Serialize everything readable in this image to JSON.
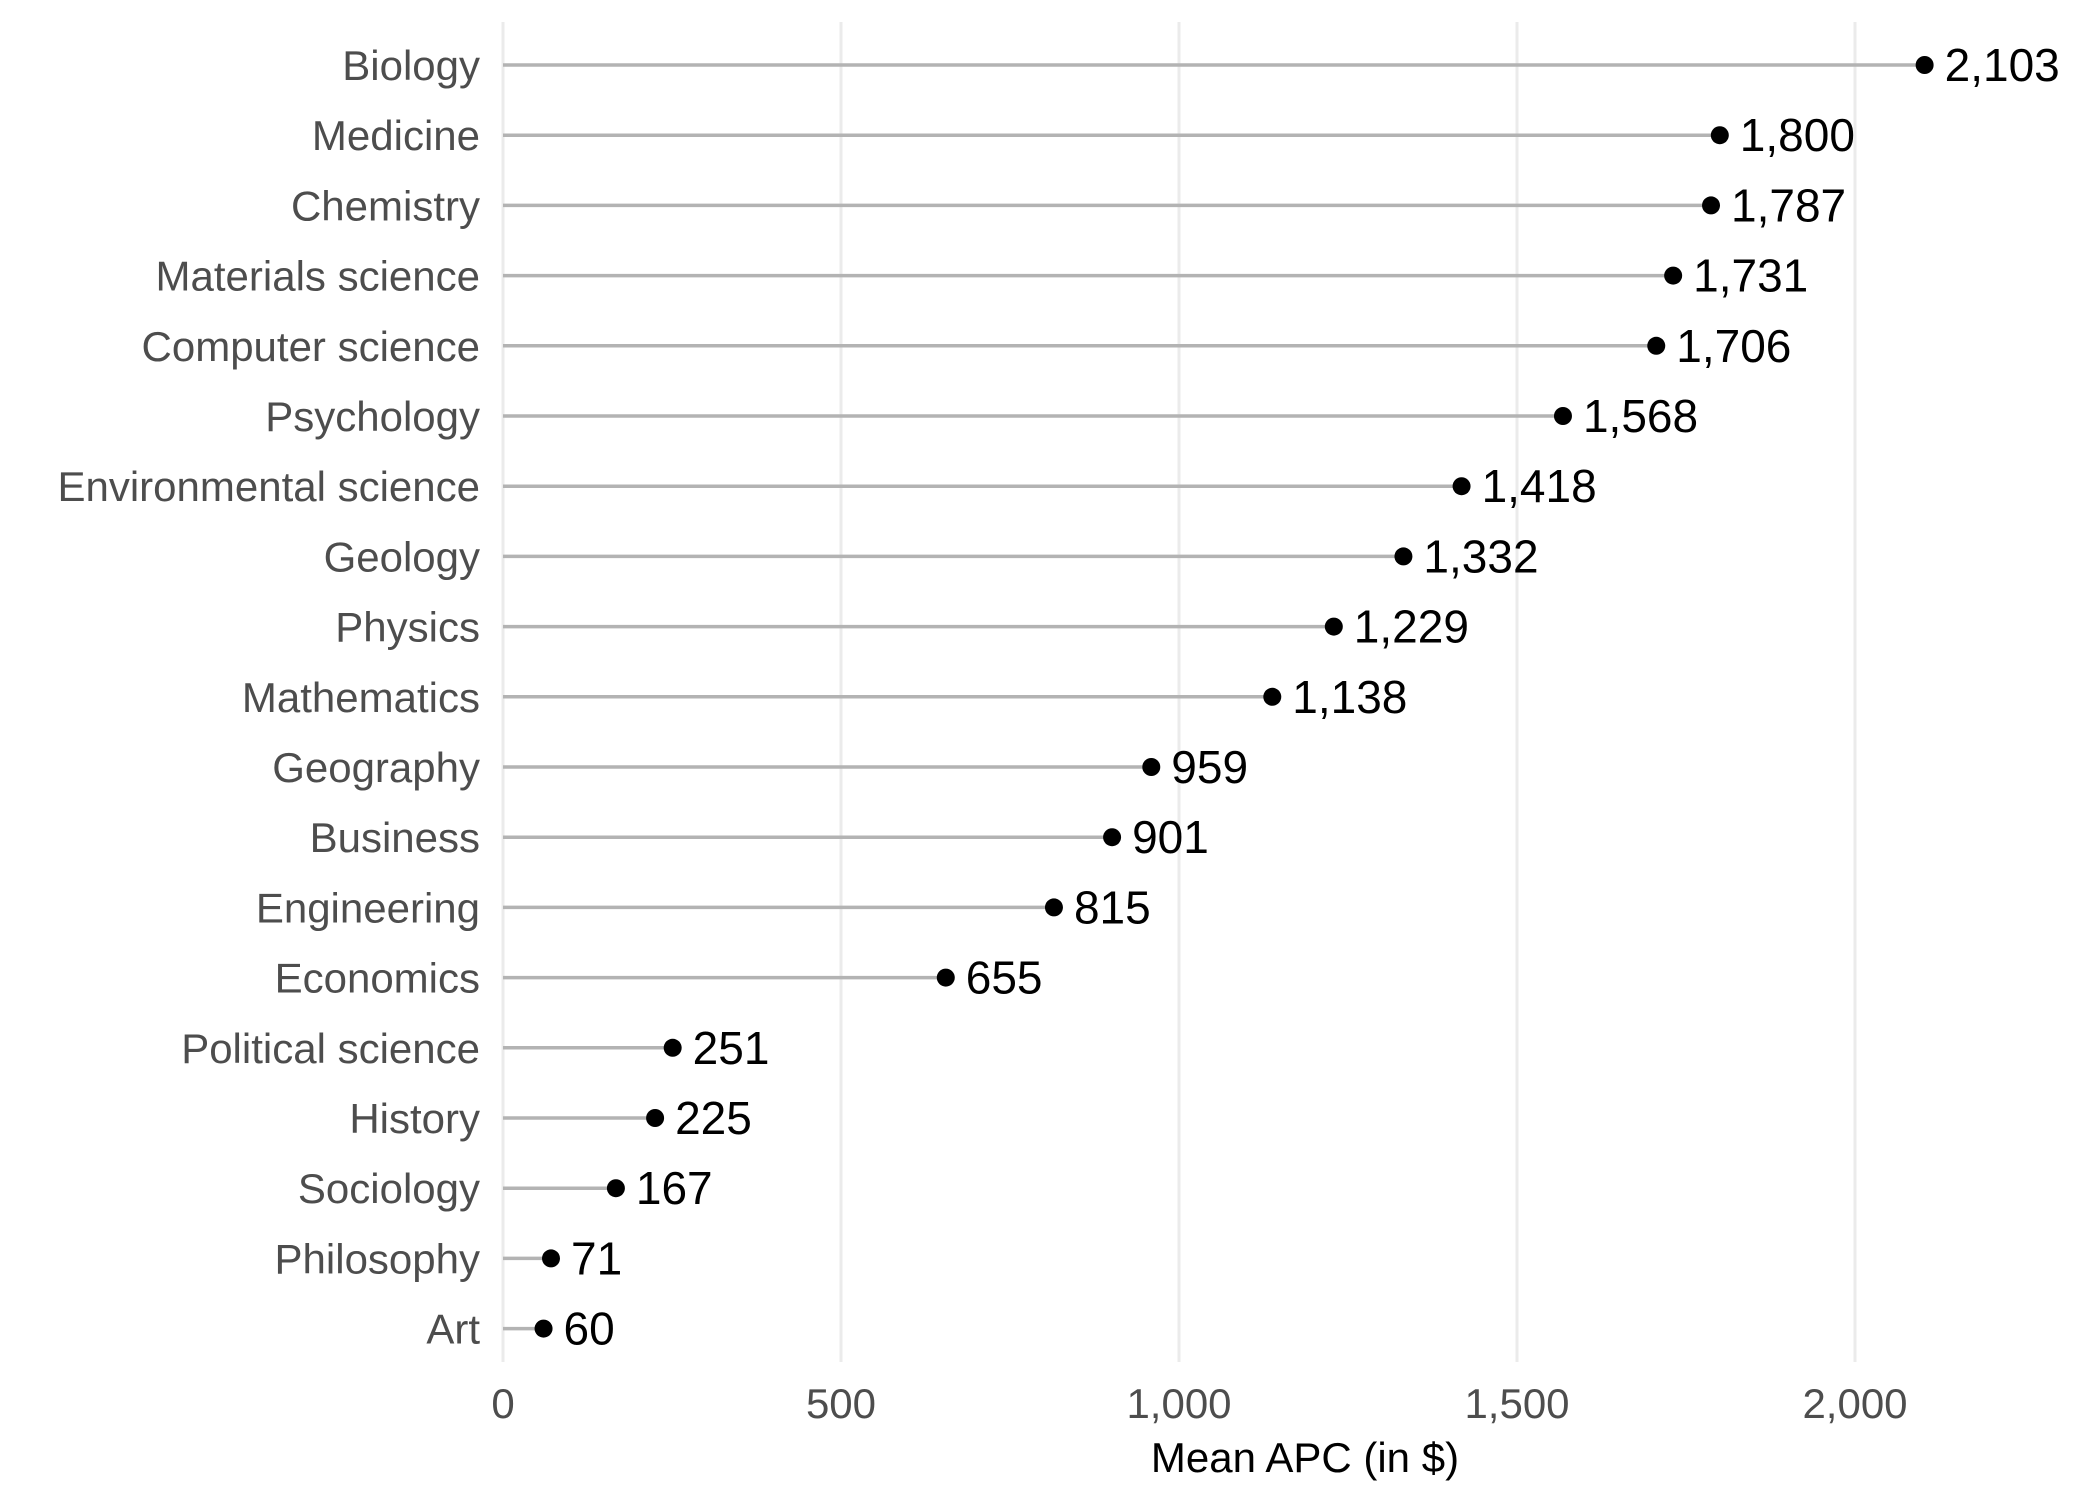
{
  "chart_data": {
    "type": "lollipop",
    "title": "",
    "xlabel": "Mean APC (in $)",
    "ylabel": "",
    "xlim": [
      0,
      2103
    ],
    "x_ticks": [
      0,
      500,
      1000,
      1500,
      2000
    ],
    "x_tick_labels": [
      "0",
      "500",
      "1,000",
      "1,500",
      "2,000"
    ],
    "grid": "vertical",
    "legend": "none",
    "categories": [
      "Biology",
      "Medicine",
      "Chemistry",
      "Materials science",
      "Computer science",
      "Psychology",
      "Environmental science",
      "Geology",
      "Physics",
      "Mathematics",
      "Geography",
      "Business",
      "Engineering",
      "Economics",
      "Political science",
      "History",
      "Sociology",
      "Philosophy",
      "Art"
    ],
    "values": [
      2103,
      1800,
      1787,
      1731,
      1706,
      1568,
      1418,
      1332,
      1229,
      1138,
      959,
      901,
      815,
      655,
      251,
      225,
      167,
      71,
      60
    ],
    "value_labels": [
      "2,103",
      "1,800",
      "1,787",
      "1,731",
      "1,706",
      "1,568",
      "1,418",
      "1,332",
      "1,229",
      "1,138",
      "959",
      "901",
      "815",
      "655",
      "251",
      "225",
      "167",
      "71",
      "60"
    ],
    "colors": {
      "stem": "#b3b3b3",
      "point": "#000000",
      "grid": "#ebebeb"
    }
  }
}
